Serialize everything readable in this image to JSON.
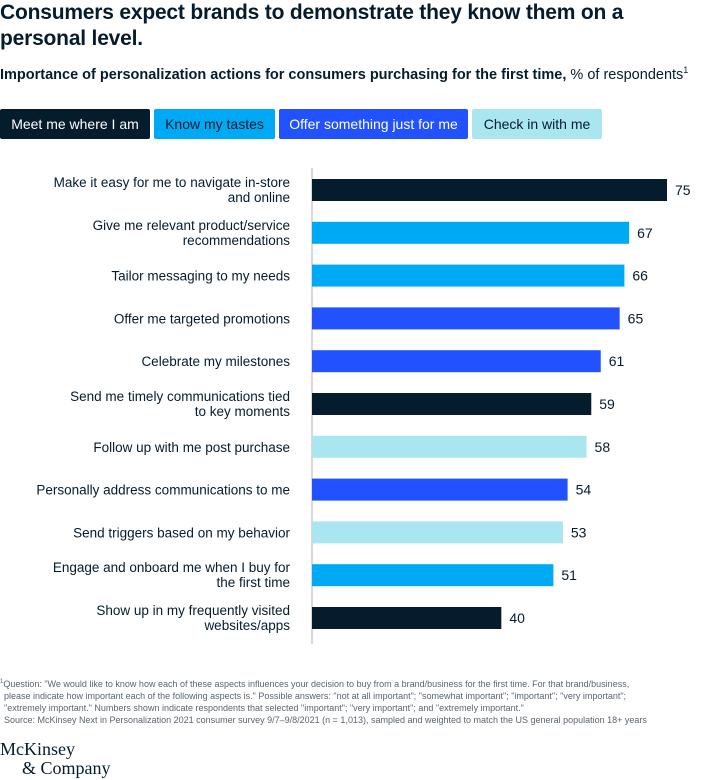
{
  "title": "Consumers expect brands to demonstrate they know them on a personal level.",
  "subtitle": {
    "bold": "Importance of personalization actions for consumers purchasing for the first time,",
    "rest": " % of respondents",
    "footnote_mark": "1"
  },
  "legend": [
    {
      "label": "Meet me where I am",
      "color": "#051c2c",
      "text_color": "#ffffff"
    },
    {
      "label": "Know my tastes",
      "color": "#00a9f4",
      "text_color": "#051c2c"
    },
    {
      "label": "Offer something just for me",
      "color": "#2251ff",
      "text_color": "#ffffff"
    },
    {
      "label": "Check in with me",
      "color": "#aae6f0",
      "text_color": "#051c2c"
    }
  ],
  "chart_data": {
    "type": "bar",
    "orientation": "horizontal",
    "xlim": [
      0,
      75
    ],
    "categories": [
      "Make it easy for me to navigate in-store and online",
      "Give me relevant product/service recommendations",
      "Tailor messaging to my needs",
      "Offer me targeted promotions",
      "Celebrate my milestones",
      "Send me timely communications tied to key moments",
      "Follow up with me post purchase",
      "Personally address communications to me",
      "Send triggers based on my behavior",
      "Engage and onboard me when I buy for the first time",
      "Show up in my frequently visited websites/apps"
    ],
    "category_lines": [
      [
        "Make it easy for me to navigate in-store",
        "and online"
      ],
      [
        "Give me relevant product/service",
        "recommendations"
      ],
      [
        "Tailor messaging to my needs"
      ],
      [
        "Offer me targeted promotions"
      ],
      [
        "Celebrate my milestones"
      ],
      [
        "Send me timely communications tied",
        "to key moments"
      ],
      [
        "Follow up with me post purchase"
      ],
      [
        "Personally address communications to me"
      ],
      [
        "Send triggers based on my behavior"
      ],
      [
        "Engage and onboard me when I buy for",
        "the first time"
      ],
      [
        "Show up in my frequently visited",
        "websites/apps"
      ]
    ],
    "values": [
      75,
      67,
      66,
      65,
      61,
      59,
      58,
      54,
      53,
      51,
      40
    ],
    "groups": [
      "Meet me where I am",
      "Know my tastes",
      "Know my tastes",
      "Offer something just for me",
      "Offer something just for me",
      "Meet me where I am",
      "Check in with me",
      "Offer something just for me",
      "Check in with me",
      "Know my tastes",
      "Meet me where I am"
    ]
  },
  "footnote": {
    "mark": "1",
    "lines": [
      "Question: \"We would like to know how each of these aspects influences your decision to buy from a brand/business for the first time. For that brand/business,",
      "please indicate how important each of the following aspects is.\" Possible answers: \"not at all important\"; \"somewhat important\"; \"important\"; \"very important\";",
      "\"extremely important.\" Numbers shown indicate respondents that selected \"important\"; \"very important\"; and \"extremely important.\"",
      "Source: McKinsey Next in Personalization 2021 consumer survey 9/7–9/8/2021 (n = 1,013), sampled and weighted to match the US general population 18+ years"
    ]
  },
  "logo": {
    "line1": "McKinsey",
    "line2": "& Company"
  }
}
